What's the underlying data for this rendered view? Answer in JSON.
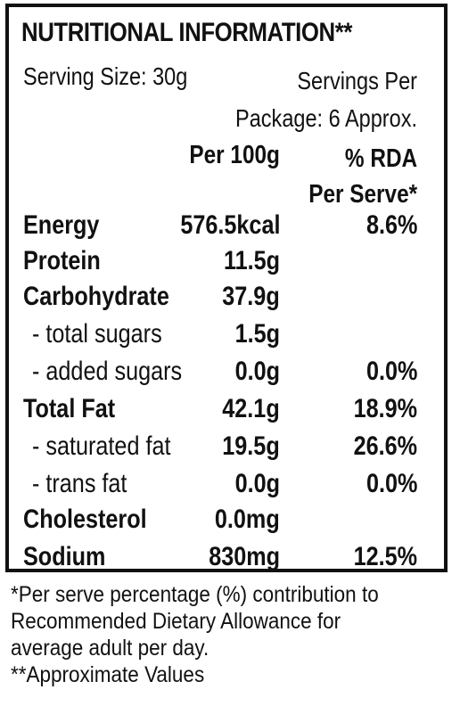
{
  "title": "NUTRITIONAL INFORMATION**",
  "serving_size": "Serving Size: 30g",
  "servings_per_package": [
    "Servings Per",
    "Package: 6 Approx."
  ],
  "columns": {
    "per100": "Per 100g",
    "rda": [
      "% RDA",
      "Per Serve*"
    ]
  },
  "rows": [
    {
      "label": "Energy",
      "per100": "576.5kcal",
      "rda": "8.6%",
      "type": "main"
    },
    {
      "label": "Protein",
      "per100": "11.5g",
      "rda": "",
      "type": "main"
    },
    {
      "label": "Carbohydrate",
      "per100": "37.9g",
      "rda": "",
      "type": "main"
    },
    {
      "label": "- total sugars",
      "per100": "1.5g",
      "rda": "",
      "type": "sub"
    },
    {
      "label": "- added sugars",
      "per100": "0.0g",
      "rda": "0.0%",
      "type": "sub"
    },
    {
      "label": "Total Fat",
      "per100": "42.1g",
      "rda": "18.9%",
      "type": "main"
    },
    {
      "label": "- saturated fat",
      "per100": "19.5g",
      "rda": "26.6%",
      "type": "sub"
    },
    {
      "label": "- trans fat",
      "per100": "0.0g",
      "rda": "0.0%",
      "type": "sub"
    },
    {
      "label": "Cholesterol",
      "per100": "0.0mg",
      "rda": "",
      "type": "main"
    },
    {
      "label": "Sodium",
      "per100": "830mg",
      "rda": "12.5%",
      "type": "main"
    }
  ],
  "footnote": [
    "*Per serve percentage (%) contribution to",
    "Recommended Dietary Allowance for",
    "average adult per day.",
    "**Approximate Values"
  ]
}
